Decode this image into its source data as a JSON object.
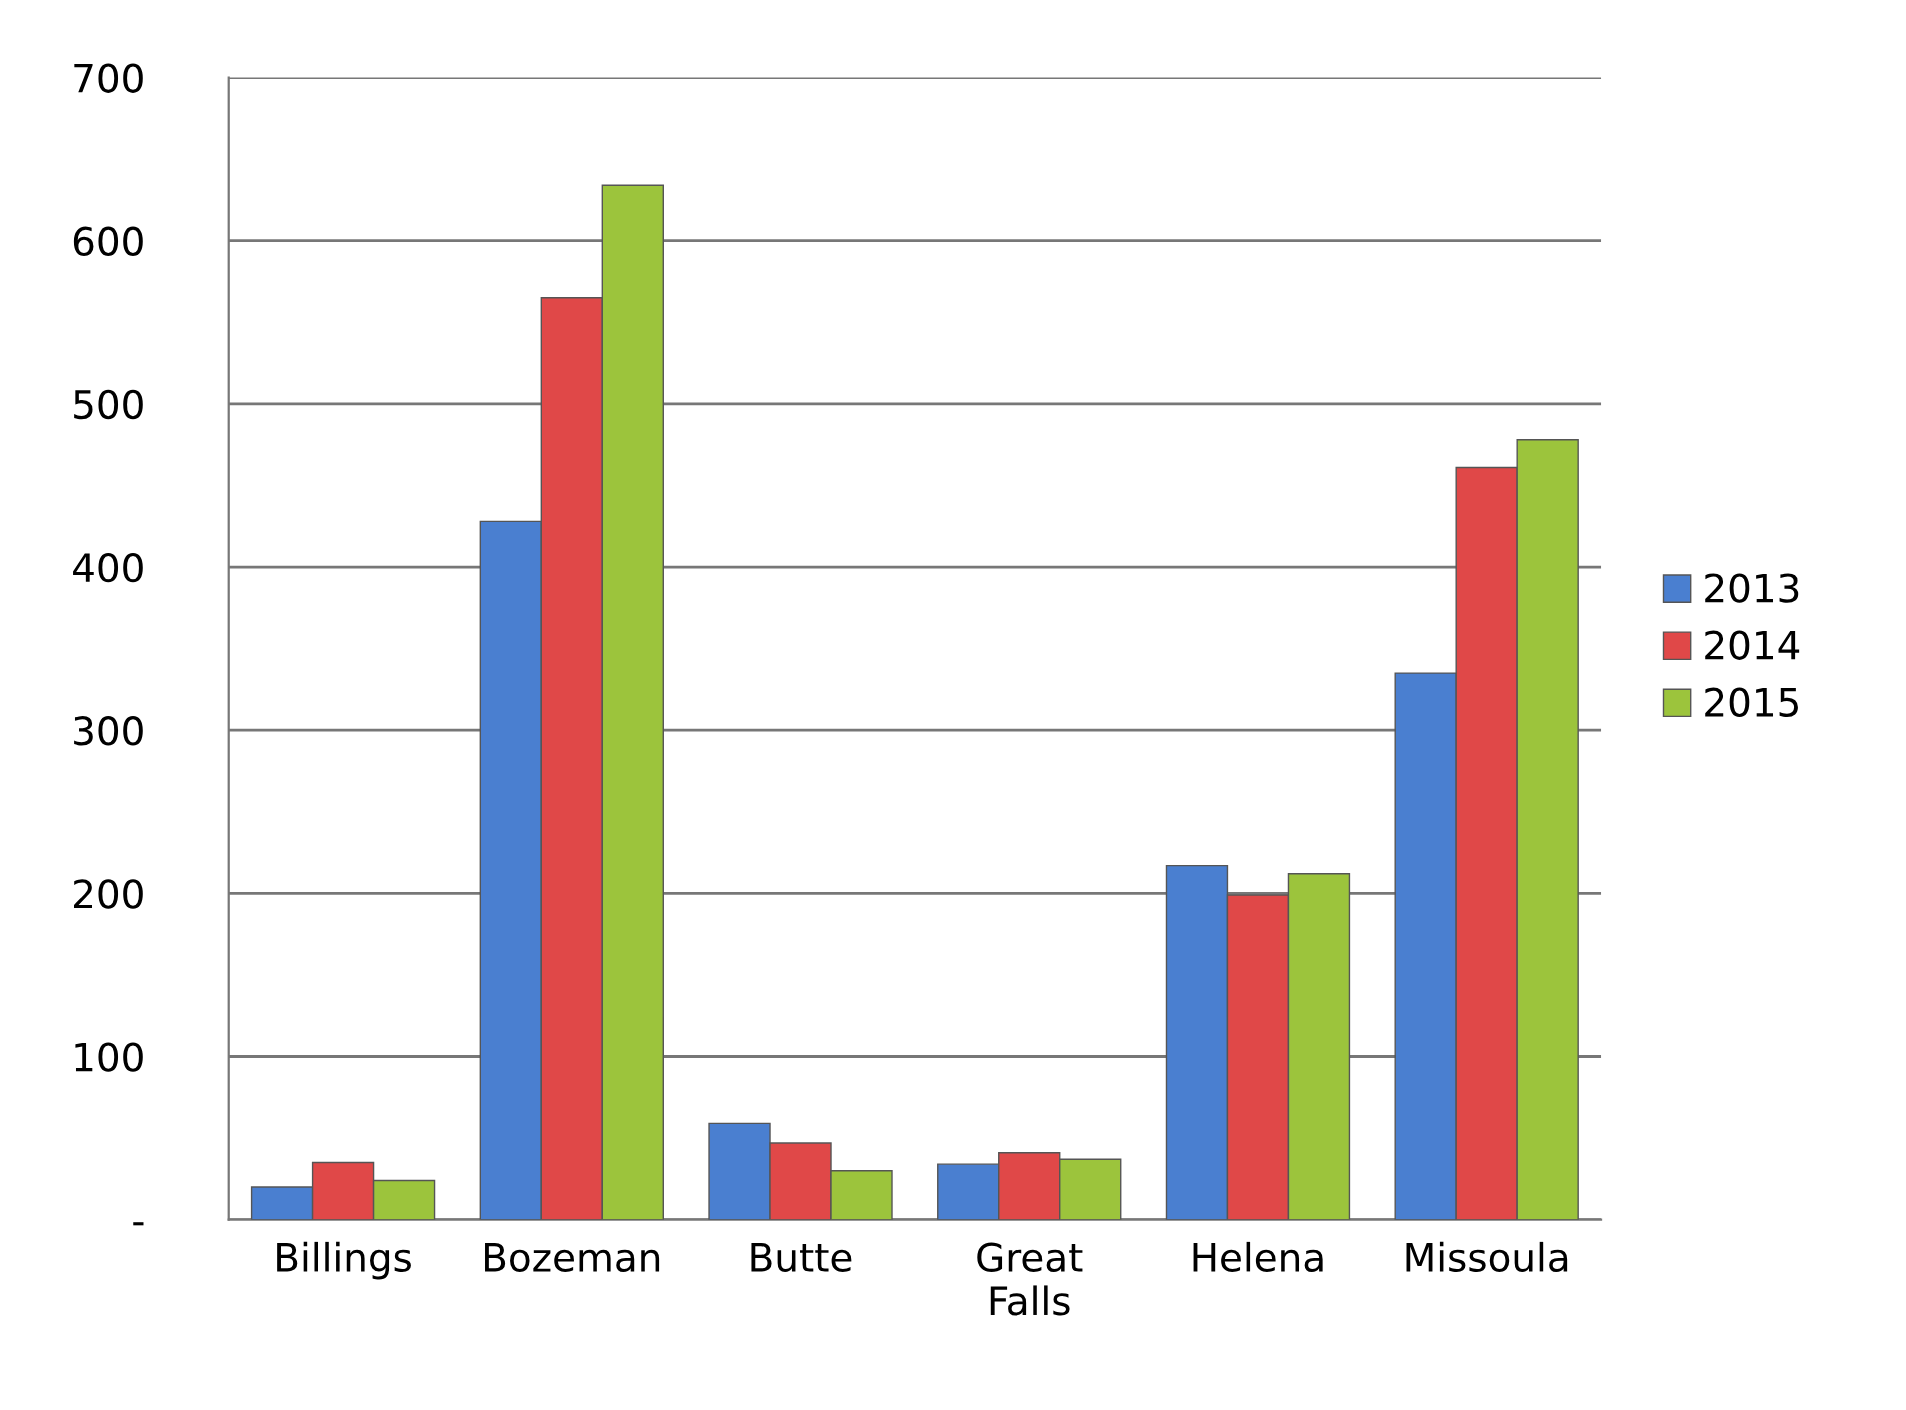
{
  "chart_data": {
    "type": "bar",
    "categories": [
      "Billings",
      "Bozeman",
      "Butte",
      "Great\nFalls",
      "Helena",
      "Missoula"
    ],
    "series": [
      {
        "name": "2013",
        "color": "#4a7fd0",
        "values": [
          20,
          428,
          59,
          34,
          217,
          335
        ]
      },
      {
        "name": "2014",
        "color": "#e04848",
        "values": [
          35,
          565,
          47,
          41,
          199,
          461
        ]
      },
      {
        "name": "2015",
        "color": "#9cc43c",
        "values": [
          24,
          634,
          30,
          37,
          212,
          478
        ]
      }
    ],
    "ylim": [
      0,
      700
    ],
    "yticks": [
      {
        "value": 0,
        "label": "-"
      },
      100,
      200,
      300,
      400,
      500,
      600,
      700
    ],
    "grid": "y",
    "legend": "right"
  }
}
